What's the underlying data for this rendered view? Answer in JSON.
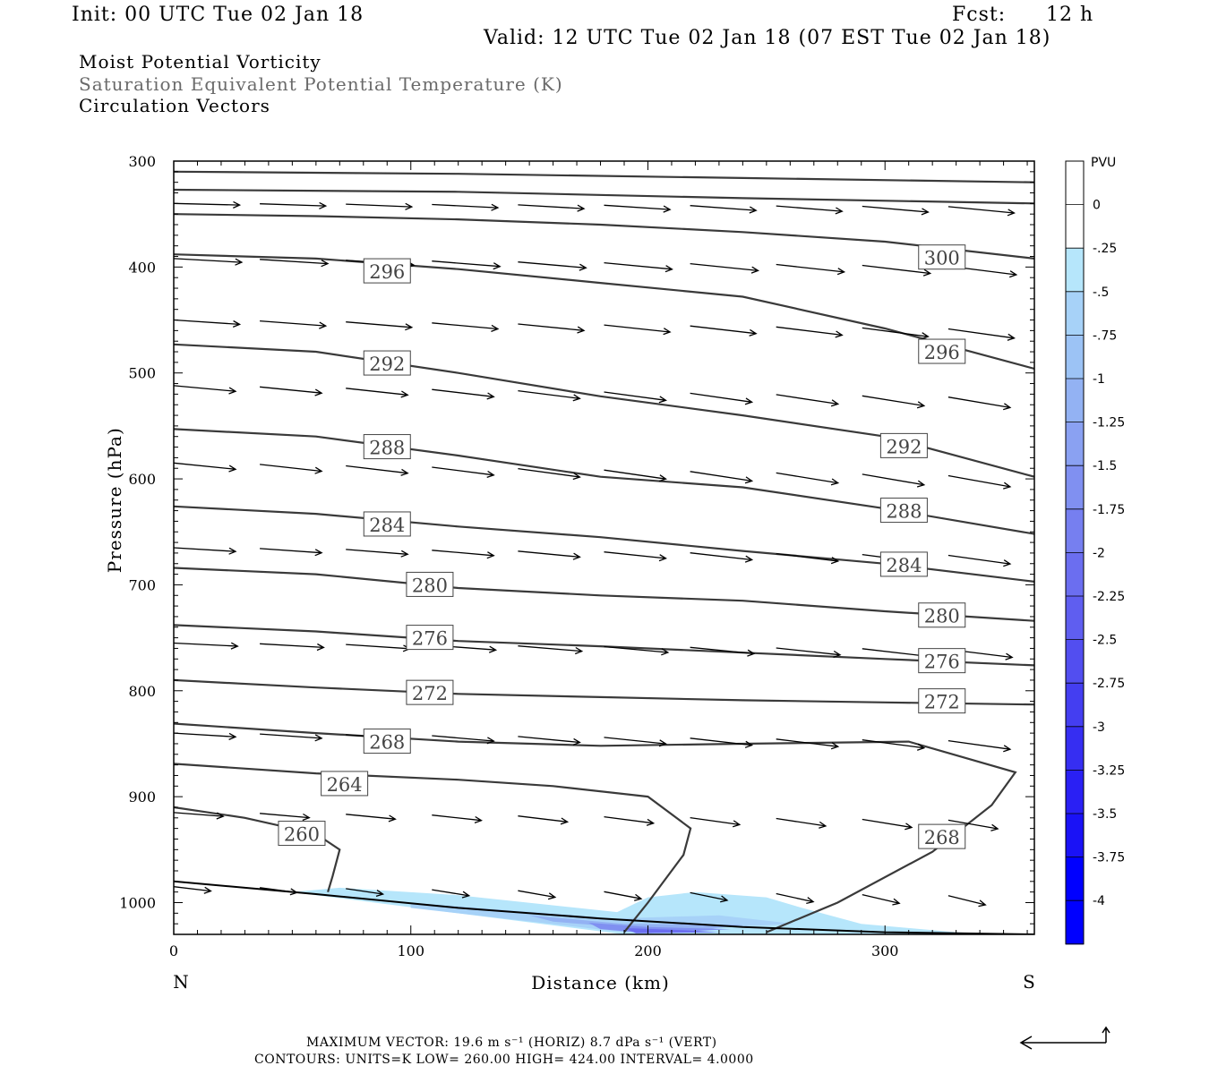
{
  "header": {
    "init": "Init: 00 UTC Tue 02 Jan 18",
    "fcst_label": "Fcst:",
    "fcst_value": "12 h",
    "valid": "Valid: 12 UTC Tue 02 Jan 18 (07 EST Tue 02 Jan 18)"
  },
  "fields": {
    "line1": "Moist Potential Vorticity",
    "line2": "Saturation Equivalent Potential Temperature (K)",
    "line3": "Circulation Vectors"
  },
  "footer": {
    "max_vector": "MAXIMUM VECTOR:  19.6 m s⁻¹ (HORIZ)        8.7 dPa s⁻¹ (VERT)",
    "contours": "CONTOURS:  UNITS=K  LOW=   260.00       HIGH=   424.00       INTERVAL=    4.0000"
  },
  "colors": {
    "contour": "#3a3a3a",
    "arrow": "#000000",
    "pv_shades": [
      "#b6e6fb",
      "#a7d2f8",
      "#9cc3f5",
      "#93b2f3",
      "#8aa1f2",
      "#8090f1",
      "#767ff0",
      "#6b6ef0",
      "#5f5ef0",
      "#524ef0",
      "#443ef1",
      "#362ef2",
      "#2a20f4",
      "#1a12f6",
      "#0000ff"
    ]
  },
  "chart_data": {
    "type": "cross-section",
    "xlabel": "Distance (km)",
    "ylabel": "Pressure (hPa)",
    "xlim": [
      0,
      363
    ],
    "ylim": [
      1030,
      300
    ],
    "x_ticks": [
      0,
      100,
      200,
      300
    ],
    "x_tick_labels": [
      "0",
      "100",
      "200",
      "300"
    ],
    "y_ticks": [
      300,
      400,
      500,
      600,
      700,
      800,
      900,
      1000
    ],
    "y_tick_labels": [
      "300",
      "400",
      "500",
      "600",
      "700",
      "800",
      "900",
      "1000"
    ],
    "end_labels": {
      "left": "N",
      "right": "S"
    },
    "colorbar": {
      "title": "PVU",
      "levels": [
        0,
        -0.25,
        -0.5,
        -0.75,
        -1,
        -1.25,
        -1.5,
        -1.75,
        -2,
        -2.25,
        -2.5,
        -2.75,
        -3,
        -3.25,
        -3.5,
        -3.75,
        -4
      ],
      "labels": [
        "0",
        "-.25",
        "-.5",
        "-.75",
        "-1",
        "-1.25",
        "-1.5",
        "-1.75",
        "-2",
        "-2.25",
        "-2.5",
        "-2.75",
        "-3",
        "-3.25",
        "-3.5",
        "-3.75",
        "-4"
      ]
    },
    "theta_es_contours": [
      {
        "value": 300,
        "label": "300",
        "label_pos": [
          324,
          391
        ],
        "points": [
          [
            0,
            350
          ],
          [
            60,
            352
          ],
          [
            120,
            355
          ],
          [
            180,
            360
          ],
          [
            240,
            367
          ],
          [
            300,
            376
          ],
          [
            363,
            392
          ]
        ]
      },
      {
        "value": 296,
        "label": "296",
        "label_pos": [
          90,
          404
        ],
        "points": [
          [
            0,
            388
          ],
          [
            60,
            392
          ],
          [
            120,
            402
          ],
          [
            180,
            415
          ],
          [
            240,
            428
          ],
          [
            300,
            458
          ],
          [
            363,
            496
          ]
        ]
      },
      {
        "value": 296,
        "label": "296",
        "label_pos": [
          324,
          480
        ],
        "points": []
      },
      {
        "value": 292,
        "label": "292",
        "label_pos": [
          90,
          491
        ],
        "points": [
          [
            0,
            473
          ],
          [
            60,
            480
          ],
          [
            120,
            500
          ],
          [
            180,
            522
          ],
          [
            240,
            540
          ],
          [
            300,
            560
          ],
          [
            363,
            598
          ]
        ]
      },
      {
        "value": 292,
        "label": "292",
        "label_pos": [
          308,
          569
        ],
        "points": []
      },
      {
        "value": 288,
        "label": "288",
        "label_pos": [
          90,
          570
        ],
        "points": [
          [
            0,
            553
          ],
          [
            60,
            560
          ],
          [
            120,
            578
          ],
          [
            180,
            598
          ],
          [
            240,
            608
          ],
          [
            300,
            628
          ],
          [
            363,
            652
          ]
        ]
      },
      {
        "value": 288,
        "label": "288",
        "label_pos": [
          308,
          630
        ],
        "points": []
      },
      {
        "value": 284,
        "label": "284",
        "label_pos": [
          90,
          643
        ],
        "points": [
          [
            0,
            626
          ],
          [
            60,
            633
          ],
          [
            120,
            645
          ],
          [
            180,
            655
          ],
          [
            240,
            668
          ],
          [
            300,
            680
          ],
          [
            363,
            697
          ]
        ]
      },
      {
        "value": 284,
        "label": "284",
        "label_pos": [
          308,
          681
        ],
        "points": []
      },
      {
        "value": 280,
        "label": "280",
        "label_pos": [
          108,
          700
        ],
        "points": [
          [
            0,
            684
          ],
          [
            60,
            690
          ],
          [
            120,
            703
          ],
          [
            180,
            710
          ],
          [
            240,
            715
          ],
          [
            300,
            725
          ],
          [
            363,
            734
          ]
        ]
      },
      {
        "value": 280,
        "label": "280",
        "label_pos": [
          324,
          729
        ],
        "points": []
      },
      {
        "value": 276,
        "label": "276",
        "label_pos": [
          108,
          750
        ],
        "points": [
          [
            0,
            738
          ],
          [
            60,
            744
          ],
          [
            120,
            753
          ],
          [
            180,
            758
          ],
          [
            240,
            764
          ],
          [
            300,
            770
          ],
          [
            363,
            776
          ]
        ]
      },
      {
        "value": 276,
        "label": "276",
        "label_pos": [
          324,
          772
        ],
        "points": []
      },
      {
        "value": 272,
        "label": "272",
        "label_pos": [
          108,
          802
        ],
        "points": [
          [
            0,
            790
          ],
          [
            60,
            797
          ],
          [
            120,
            803
          ],
          [
            180,
            806
          ],
          [
            240,
            809
          ],
          [
            300,
            811
          ],
          [
            363,
            813
          ]
        ]
      },
      {
        "value": 272,
        "label": "272",
        "label_pos": [
          324,
          810
        ],
        "points": []
      },
      {
        "value": 268,
        "label": "268",
        "label_pos": [
          90,
          848
        ],
        "points": [
          [
            0,
            831
          ],
          [
            60,
            840
          ],
          [
            120,
            848
          ],
          [
            180,
            852
          ],
          [
            240,
            850
          ],
          [
            310,
            848
          ],
          [
            355,
            877
          ],
          [
            345,
            908
          ],
          [
            320,
            952
          ],
          [
            280,
            1000
          ],
          [
            250,
            1028
          ]
        ]
      },
      {
        "value": 268,
        "label": "268",
        "label_pos": [
          324,
          938
        ],
        "points": []
      },
      {
        "value": 264,
        "label": "264",
        "label_pos": [
          72,
          888
        ],
        "points": [
          [
            0,
            869
          ],
          [
            60,
            878
          ],
          [
            120,
            884
          ],
          [
            160,
            890
          ],
          [
            200,
            900
          ],
          [
            218,
            930
          ],
          [
            215,
            955
          ],
          [
            200,
            1000
          ],
          [
            190,
            1028
          ]
        ]
      },
      {
        "value": 260,
        "label": "260",
        "label_pos": [
          54,
          935
        ],
        "points": [
          [
            0,
            910
          ],
          [
            30,
            920
          ],
          [
            60,
            935
          ],
          [
            70,
            950
          ],
          [
            67,
            975
          ],
          [
            65,
            990
          ]
        ]
      }
    ],
    "ground_pressure": [
      [
        0,
        980
      ],
      [
        60,
        992
      ],
      [
        120,
        1005
      ],
      [
        180,
        1015
      ],
      [
        240,
        1023
      ],
      [
        300,
        1028
      ],
      [
        363,
        1030
      ]
    ],
    "pv_regions": [
      {
        "level": -0.25,
        "points": [
          [
            50,
            990
          ],
          [
            70,
            986
          ],
          [
            120,
            993
          ],
          [
            187,
            1009
          ],
          [
            200,
            995
          ],
          [
            220,
            990
          ],
          [
            250,
            995
          ],
          [
            265,
            1005
          ],
          [
            290,
            1020
          ],
          [
            330,
            1028
          ],
          [
            350,
            1030
          ],
          [
            190,
            1030
          ],
          [
            60,
            993
          ]
        ]
      },
      {
        "level": -0.5,
        "points": [
          [
            100,
            1000
          ],
          [
            187,
            1015
          ],
          [
            230,
            1012
          ],
          [
            262,
            1020
          ],
          [
            190,
            1028
          ],
          [
            100,
            1005
          ]
        ]
      },
      {
        "level": -1.0,
        "points": [
          [
            150,
            1012
          ],
          [
            190,
            1020
          ],
          [
            240,
            1021
          ],
          [
            215,
            1028
          ],
          [
            160,
            1018
          ]
        ]
      },
      {
        "level": -1.5,
        "points": [
          [
            175,
            1019
          ],
          [
            200,
            1023
          ],
          [
            235,
            1025
          ],
          [
            200,
            1029
          ],
          [
            180,
            1025
          ]
        ]
      },
      {
        "level": -2.0,
        "points": [
          [
            190,
            1024
          ],
          [
            215,
            1026
          ],
          [
            230,
            1028
          ],
          [
            195,
            1029
          ]
        ]
      }
    ],
    "vectors": {
      "rows": [
        {
          "p": 340,
          "x0": 0,
          "dx": 36,
          "len": 32,
          "dp": 5
        },
        {
          "p": 392,
          "x0": 0,
          "dx": 36,
          "len": 33,
          "dp": 12
        },
        {
          "p": 450,
          "x0": 0,
          "dx": 36,
          "len": 32,
          "dp": 14
        },
        {
          "p": 512,
          "x0": 0,
          "dx": 36,
          "len": 30,
          "dp": 18
        },
        {
          "p": 585,
          "x0": 0,
          "dx": 36,
          "len": 30,
          "dp": 20
        },
        {
          "p": 665,
          "x0": 0,
          "dx": 36,
          "len": 30,
          "dp": 12
        },
        {
          "p": 755,
          "x0": 0,
          "dx": 36,
          "len": 31,
          "dp": 10
        },
        {
          "p": 840,
          "x0": 0,
          "dx": 36,
          "len": 30,
          "dp": 12
        },
        {
          "p": 915,
          "x0": 0,
          "dx": 36,
          "len": 24,
          "dp": 12
        },
        {
          "p": 985,
          "x0": 0,
          "dx": 36,
          "len": 18,
          "dp": 14
        }
      ]
    }
  }
}
